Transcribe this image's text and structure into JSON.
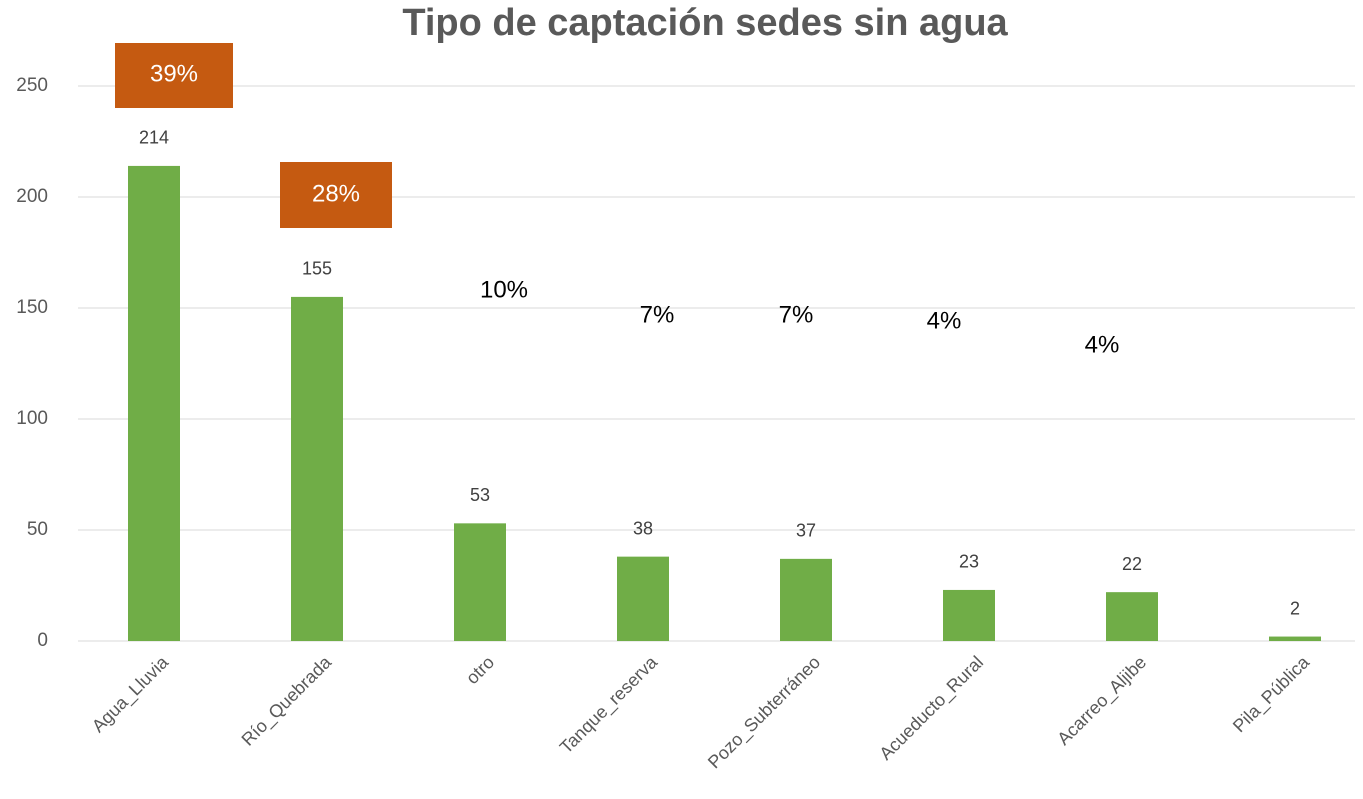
{
  "chart_data": {
    "type": "bar",
    "title": "Tipo de captación sedes sin agua",
    "categories": [
      "Agua_Lluvia",
      "Río_Quebrada",
      "otro",
      "Tanque_reserva",
      "Pozo_Subterráneo",
      "Acueducto_Rural",
      "Acarreo_Aljibe",
      "Pila_Pública"
    ],
    "values": [
      214,
      155,
      53,
      38,
      37,
      23,
      22,
      2
    ],
    "color": "#70ad47",
    "ylim": [
      0,
      250
    ],
    "yticks": [
      0,
      50,
      100,
      150,
      200,
      250
    ],
    "grid": true,
    "annotations": [
      {
        "text": "39%",
        "background": "#c55a11"
      },
      {
        "text": "28%",
        "background": "#c55a11"
      },
      {
        "text": "10%"
      },
      {
        "text": "7%"
      },
      {
        "text": "7%"
      },
      {
        "text": "4%"
      },
      {
        "text": "4%"
      }
    ]
  }
}
